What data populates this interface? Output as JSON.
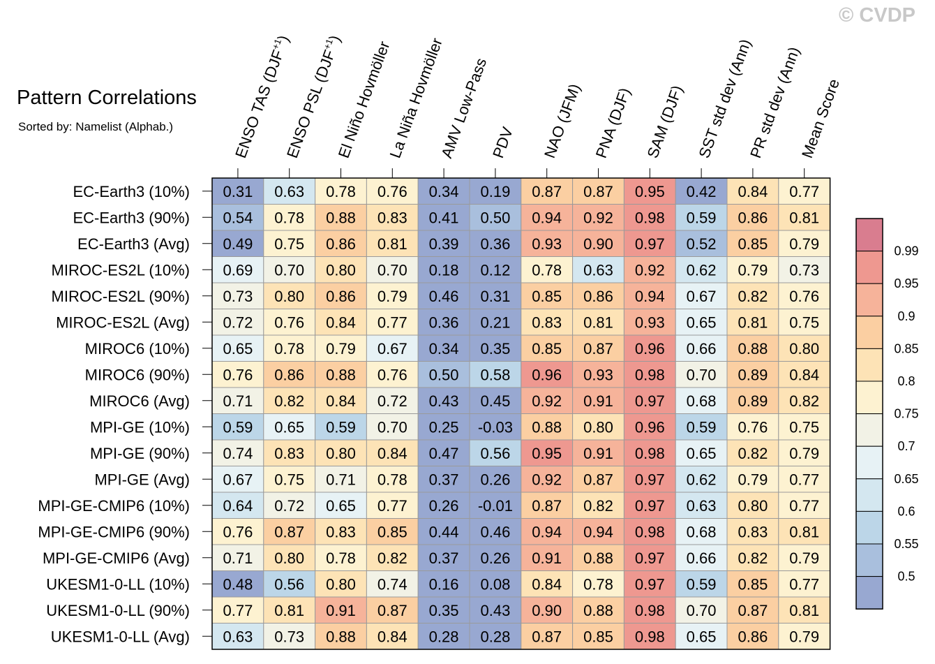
{
  "title": "Pattern Correlations",
  "subtitle": "Sorted by: Namelist (Alphab.)",
  "watermark": "© CVDP",
  "chart_data": {
    "type": "heatmap",
    "title": "Pattern Correlations",
    "columns": [
      {
        "text": "ENSO TAS (DJF",
        "sup": "+1",
        "tail": ")"
      },
      {
        "text": "ENSO PSL (DJF",
        "sup": "+1",
        "tail": ")"
      },
      {
        "text": "El Niño Hovmöller",
        "sup": "",
        "tail": ""
      },
      {
        "text": "La Niña Hovmöller",
        "sup": "",
        "tail": ""
      },
      {
        "text": "AMV Low-Pass",
        "sup": "",
        "tail": ""
      },
      {
        "text": "PDV",
        "sup": "",
        "tail": ""
      },
      {
        "text": "NAO (JFM)",
        "sup": "",
        "tail": ""
      },
      {
        "text": "PNA (DJF)",
        "sup": "",
        "tail": ""
      },
      {
        "text": "SAM (DJF)",
        "sup": "",
        "tail": ""
      },
      {
        "text": "SST std dev (Ann)",
        "sup": "",
        "tail": ""
      },
      {
        "text": "PR std dev (Ann)",
        "sup": "",
        "tail": ""
      },
      {
        "text": "Mean Score",
        "sup": "",
        "tail": ""
      }
    ],
    "rows": [
      {
        "label": "EC-Earth3 (10%)",
        "values": [
          "0.31",
          "0.63",
          "0.78",
          "0.76",
          "0.34",
          "0.19",
          "0.87",
          "0.87",
          "0.95",
          "0.42",
          "0.84",
          "0.77"
        ]
      },
      {
        "label": "EC-Earth3 (90%)",
        "values": [
          "0.54",
          "0.78",
          "0.88",
          "0.83",
          "0.41",
          "0.50",
          "0.94",
          "0.92",
          "0.98",
          "0.59",
          "0.86",
          "0.81"
        ]
      },
      {
        "label": "EC-Earth3 (Avg)",
        "values": [
          "0.49",
          "0.75",
          "0.86",
          "0.81",
          "0.39",
          "0.36",
          "0.93",
          "0.90",
          "0.97",
          "0.52",
          "0.85",
          "0.79"
        ]
      },
      {
        "label": "MIROC-ES2L (10%)",
        "values": [
          "0.69",
          "0.70",
          "0.80",
          "0.70",
          "0.18",
          "0.12",
          "0.78",
          "0.63",
          "0.92",
          "0.62",
          "0.79",
          "0.73"
        ]
      },
      {
        "label": "MIROC-ES2L (90%)",
        "values": [
          "0.73",
          "0.80",
          "0.86",
          "0.79",
          "0.46",
          "0.31",
          "0.85",
          "0.86",
          "0.94",
          "0.67",
          "0.82",
          "0.76"
        ]
      },
      {
        "label": "MIROC-ES2L (Avg)",
        "values": [
          "0.72",
          "0.76",
          "0.84",
          "0.77",
          "0.36",
          "0.21",
          "0.83",
          "0.81",
          "0.93",
          "0.65",
          "0.81",
          "0.75"
        ]
      },
      {
        "label": "MIROC6 (10%)",
        "values": [
          "0.65",
          "0.78",
          "0.79",
          "0.67",
          "0.34",
          "0.35",
          "0.85",
          "0.87",
          "0.96",
          "0.66",
          "0.88",
          "0.80"
        ]
      },
      {
        "label": "MIROC6 (90%)",
        "values": [
          "0.76",
          "0.86",
          "0.88",
          "0.76",
          "0.50",
          "0.58",
          "0.96",
          "0.93",
          "0.98",
          "0.70",
          "0.89",
          "0.84"
        ]
      },
      {
        "label": "MIROC6 (Avg)",
        "values": [
          "0.71",
          "0.82",
          "0.84",
          "0.72",
          "0.43",
          "0.45",
          "0.92",
          "0.91",
          "0.97",
          "0.68",
          "0.89",
          "0.82"
        ]
      },
      {
        "label": "MPI-GE (10%)",
        "values": [
          "0.59",
          "0.65",
          "0.59",
          "0.70",
          "0.25",
          "-0.03",
          "0.88",
          "0.80",
          "0.96",
          "0.59",
          "0.76",
          "0.75"
        ]
      },
      {
        "label": "MPI-GE (90%)",
        "values": [
          "0.74",
          "0.83",
          "0.80",
          "0.84",
          "0.47",
          "0.56",
          "0.95",
          "0.91",
          "0.98",
          "0.65",
          "0.82",
          "0.79"
        ]
      },
      {
        "label": "MPI-GE (Avg)",
        "values": [
          "0.67",
          "0.75",
          "0.71",
          "0.78",
          "0.37",
          "0.26",
          "0.92",
          "0.87",
          "0.97",
          "0.62",
          "0.79",
          "0.77"
        ]
      },
      {
        "label": "MPI-GE-CMIP6 (10%)",
        "values": [
          "0.64",
          "0.72",
          "0.65",
          "0.77",
          "0.26",
          "-0.01",
          "0.87",
          "0.82",
          "0.97",
          "0.63",
          "0.80",
          "0.77"
        ]
      },
      {
        "label": "MPI-GE-CMIP6 (90%)",
        "values": [
          "0.76",
          "0.87",
          "0.83",
          "0.85",
          "0.44",
          "0.46",
          "0.94",
          "0.94",
          "0.98",
          "0.68",
          "0.83",
          "0.81"
        ]
      },
      {
        "label": "MPI-GE-CMIP6 (Avg)",
        "values": [
          "0.71",
          "0.80",
          "0.78",
          "0.82",
          "0.37",
          "0.26",
          "0.91",
          "0.88",
          "0.97",
          "0.66",
          "0.82",
          "0.79"
        ]
      },
      {
        "label": "UKESM1-0-LL (10%)",
        "values": [
          "0.48",
          "0.56",
          "0.80",
          "0.74",
          "0.16",
          "0.08",
          "0.84",
          "0.78",
          "0.97",
          "0.59",
          "0.85",
          "0.77"
        ]
      },
      {
        "label": "UKESM1-0-LL (90%)",
        "values": [
          "0.77",
          "0.81",
          "0.91",
          "0.87",
          "0.35",
          "0.43",
          "0.90",
          "0.88",
          "0.98",
          "0.70",
          "0.87",
          "0.81"
        ]
      },
      {
        "label": "UKESM1-0-LL (Avg)",
        "values": [
          "0.63",
          "0.73",
          "0.88",
          "0.84",
          "0.28",
          "0.28",
          "0.87",
          "0.85",
          "0.98",
          "0.65",
          "0.86",
          "0.79"
        ]
      }
    ],
    "colorbar": {
      "levels": [
        "0.5",
        "0.55",
        "0.6",
        "0.65",
        "0.7",
        "0.75",
        "0.8",
        "0.85",
        "0.9",
        "0.95",
        "0.99"
      ],
      "colors": [
        "#98a8d1",
        "#a9bfdd",
        "#bcd6e8",
        "#d4e7f0",
        "#e7f2f5",
        "#f2f2e6",
        "#fdf2d1",
        "#fde3b6",
        "#fbcfa2",
        "#f6b39a",
        "#ee9890",
        "#d97d8f"
      ]
    }
  }
}
